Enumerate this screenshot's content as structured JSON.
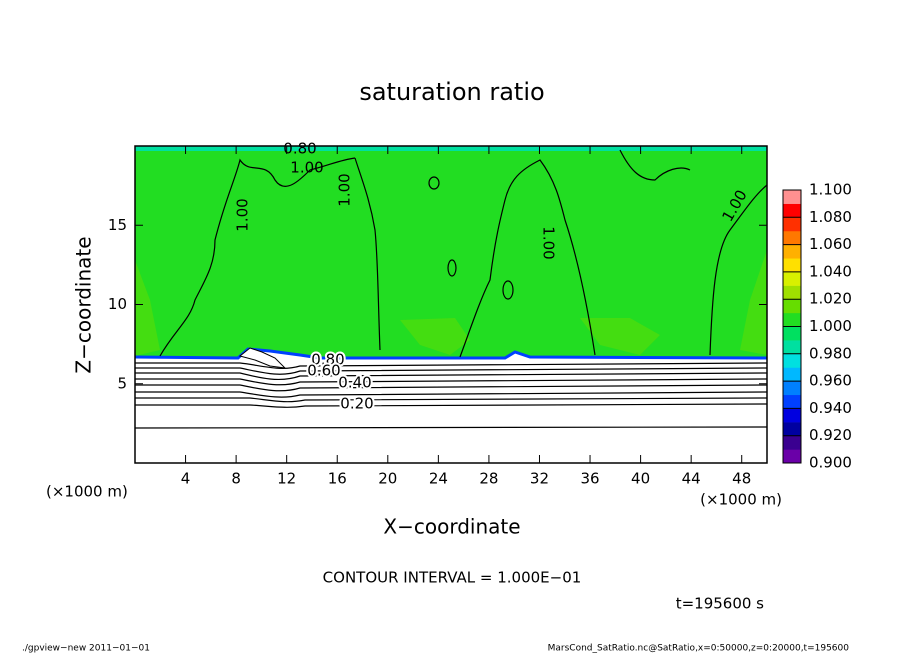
{
  "chart_data": {
    "type": "contour",
    "title": "saturation ratio",
    "xlabel": "X−coordinate",
    "ylabel": "Z−coordinate",
    "xunit": "(×1000 m)",
    "yunit": "(×1000 m)",
    "xlim": [
      0,
      50
    ],
    "ylim": [
      0,
      20
    ],
    "xticks": [
      4,
      8,
      12,
      16,
      20,
      24,
      28,
      32,
      36,
      40,
      44,
      48
    ],
    "yticks": [
      5,
      10,
      15
    ],
    "colorbar": {
      "lim": [
        0.9,
        1.1
      ],
      "ticks": [
        {
          "value": 1.1,
          "label": "1.100"
        },
        {
          "value": 1.08,
          "label": "1.080"
        },
        {
          "value": 1.06,
          "label": "1.060"
        },
        {
          "value": 1.04,
          "label": "1.040"
        },
        {
          "value": 1.02,
          "label": "1.020"
        },
        {
          "value": 1.0,
          "label": "1.000"
        },
        {
          "value": 0.98,
          "label": "0.980"
        },
        {
          "value": 0.96,
          "label": "0.960"
        },
        {
          "value": 0.94,
          "label": "0.940"
        },
        {
          "value": 0.92,
          "label": "0.920"
        },
        {
          "value": 0.9,
          "label": "0.900"
        }
      ],
      "colors": [
        "#6a00a8",
        "#3a0090",
        "#0000a0",
        "#0000e0",
        "#0040ff",
        "#0080ff",
        "#00b8ff",
        "#00e0e0",
        "#00e0a0",
        "#00e060",
        "#22dd22",
        "#66dd00",
        "#a0e000",
        "#d8f000",
        "#ffe000",
        "#ffb000",
        "#ff7800",
        "#ff3000",
        "#ff0000",
        "#ff9090"
      ]
    },
    "contour_labels": [
      "0.80",
      "1.00",
      "1.00",
      "1.00",
      "1.00",
      "1.00",
      "0.80",
      "0.60",
      "0.40",
      "0.20"
    ],
    "annotation": "CONTOUR INTERVAL = 1.000E−01",
    "time_label": "t=195600 s",
    "footer_left": "./gpview−new   2011−01−01",
    "footer_right": "MarsCond_SatRatio.nc@SatRatio,x=0:50000,z=0:20000,t=195600"
  }
}
